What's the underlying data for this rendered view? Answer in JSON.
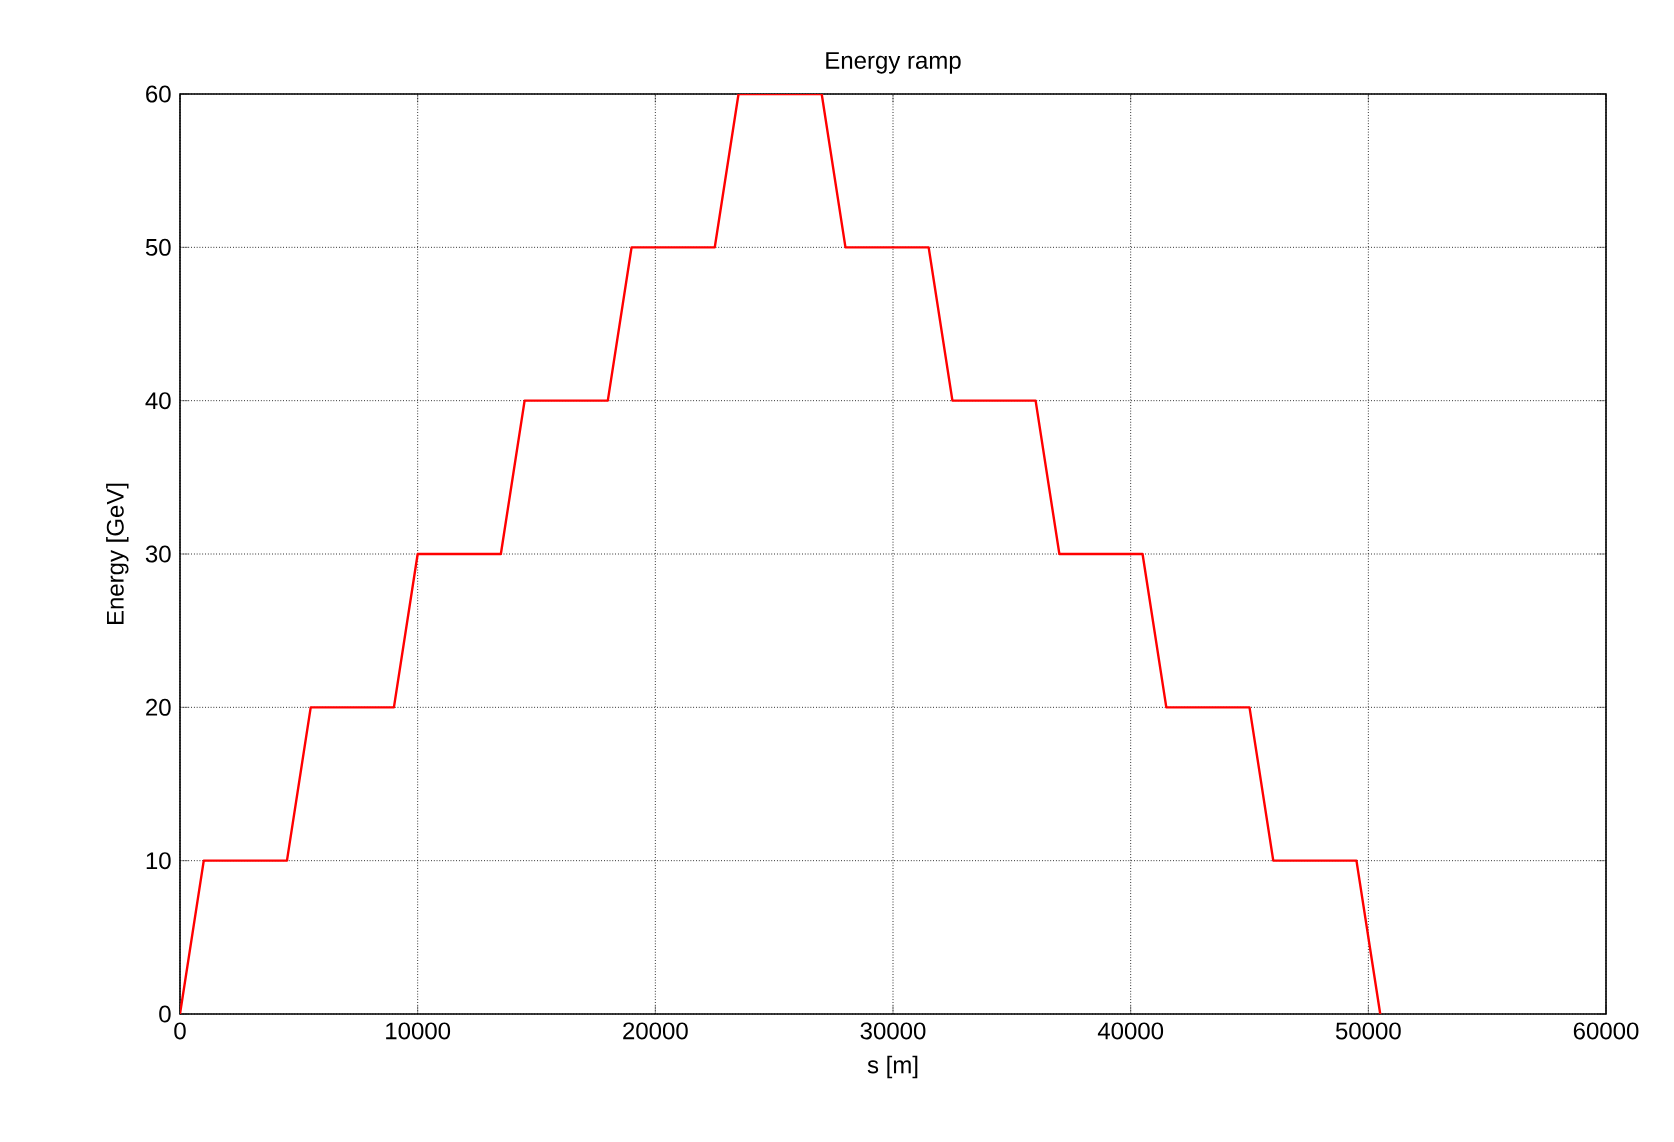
{
  "chart_data": {
    "type": "line",
    "title": "Energy ramp",
    "xlabel": "s [m]",
    "ylabel": "Energy [GeV]",
    "xlim": [
      0,
      60000
    ],
    "ylim": [
      0,
      60
    ],
    "xticks": [
      0,
      10000,
      20000,
      30000,
      40000,
      50000,
      60000
    ],
    "yticks": [
      0,
      10,
      20,
      30,
      40,
      50,
      60
    ],
    "grid": true,
    "line_style": "solid",
    "marker": "none",
    "series": [
      {
        "color": "#ff0000",
        "x": [
          0,
          1000,
          4500,
          5500,
          9000,
          10000,
          13500,
          14500,
          18000,
          19000,
          22500,
          23500,
          27000,
          28000,
          31500,
          32500,
          36000,
          37000,
          40500,
          41500,
          45000,
          46000,
          49500,
          50500
        ],
        "values": [
          0,
          10,
          10,
          20,
          20,
          30,
          30,
          40,
          40,
          50,
          50,
          60,
          60,
          50,
          50,
          40,
          40,
          30,
          30,
          20,
          20,
          10,
          10,
          0
        ]
      }
    ]
  }
}
